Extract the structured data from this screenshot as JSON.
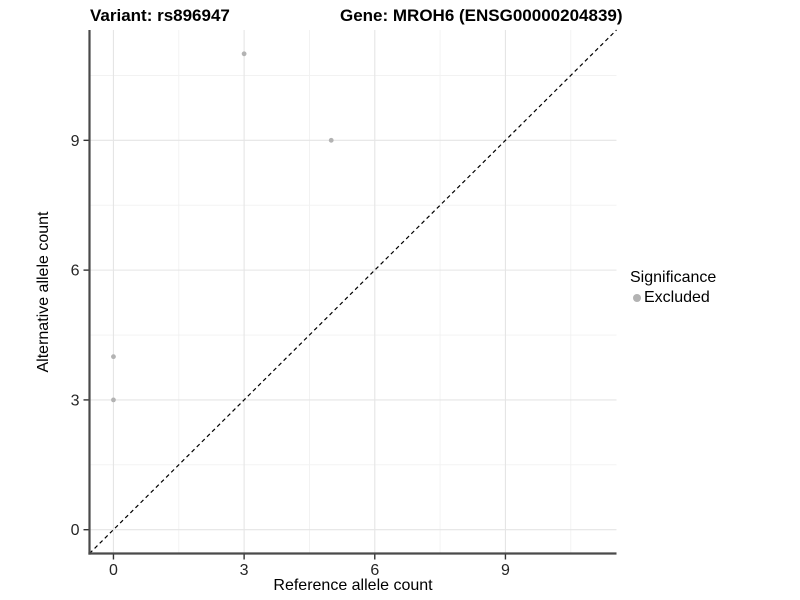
{
  "chart_data": {
    "type": "scatter",
    "title_left": "Variant: rs896947",
    "title_right": "Gene: MROH6 (ENSG00000204839)",
    "xlabel": "Reference allele count",
    "ylabel": "Alternative allele count",
    "xlim": [
      -0.55,
      11.55
    ],
    "ylim": [
      -0.55,
      11.55
    ],
    "major_ticks": [
      0,
      3,
      6,
      9
    ],
    "tick_labels": [
      "0",
      "3",
      "6",
      "9"
    ],
    "minor_gridlines": [
      1.5,
      4.5,
      7.5,
      10.5
    ],
    "grid": "major and minor gridlines on, white background",
    "points": [
      {
        "x": 0,
        "y": 3,
        "series": "Excluded"
      },
      {
        "x": 0,
        "y": 4,
        "series": "Excluded"
      },
      {
        "x": 3,
        "y": 11,
        "series": "Excluded"
      },
      {
        "x": 5,
        "y": 9,
        "series": "Excluded"
      }
    ],
    "reference_line": {
      "type": "identity y=x",
      "style": "dashed",
      "from": -0.55,
      "to": 11.55
    },
    "legend": {
      "position": "right",
      "title": "Significance",
      "items": [
        {
          "label": "Excluded",
          "color": "#b3b3b3"
        }
      ]
    }
  },
  "colors": {
    "point": "#b3b3b3",
    "axis_line": "#4a4a4a",
    "tick_mark": "#333333",
    "grid_major": "#e5e5e5",
    "grid_minor": "#f1f1f1",
    "dashed_line": "#000000",
    "tick_text": "#262626"
  }
}
